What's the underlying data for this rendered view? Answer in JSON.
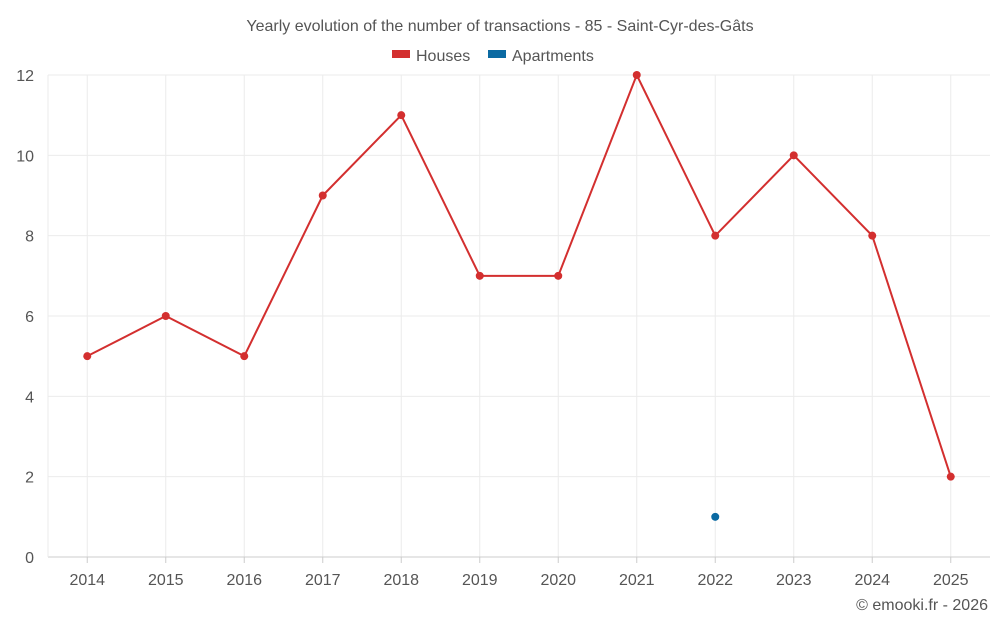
{
  "chart_data": {
    "type": "line",
    "title": "Yearly evolution of the number of transactions - 85 - Saint-Cyr-des-Gâts",
    "categories": [
      "2014",
      "2015",
      "2016",
      "2017",
      "2018",
      "2019",
      "2020",
      "2021",
      "2022",
      "2023",
      "2024",
      "2025"
    ],
    "series": [
      {
        "name": "Houses",
        "color": "#d32f2f",
        "values": [
          5,
          6,
          5,
          9,
          11,
          7,
          7,
          12,
          8,
          10,
          8,
          2
        ]
      },
      {
        "name": "Apartments",
        "color": "#0b6aa2",
        "values": [
          null,
          null,
          null,
          null,
          null,
          null,
          null,
          null,
          1,
          null,
          null,
          null
        ]
      }
    ],
    "xlabel": "",
    "ylabel": "",
    "ylim": [
      0,
      12
    ],
    "yticks": [
      0,
      2,
      4,
      6,
      8,
      10,
      12
    ],
    "grid": true,
    "legend_position": "top-center"
  },
  "credit": "© emooki.fr - 2026"
}
